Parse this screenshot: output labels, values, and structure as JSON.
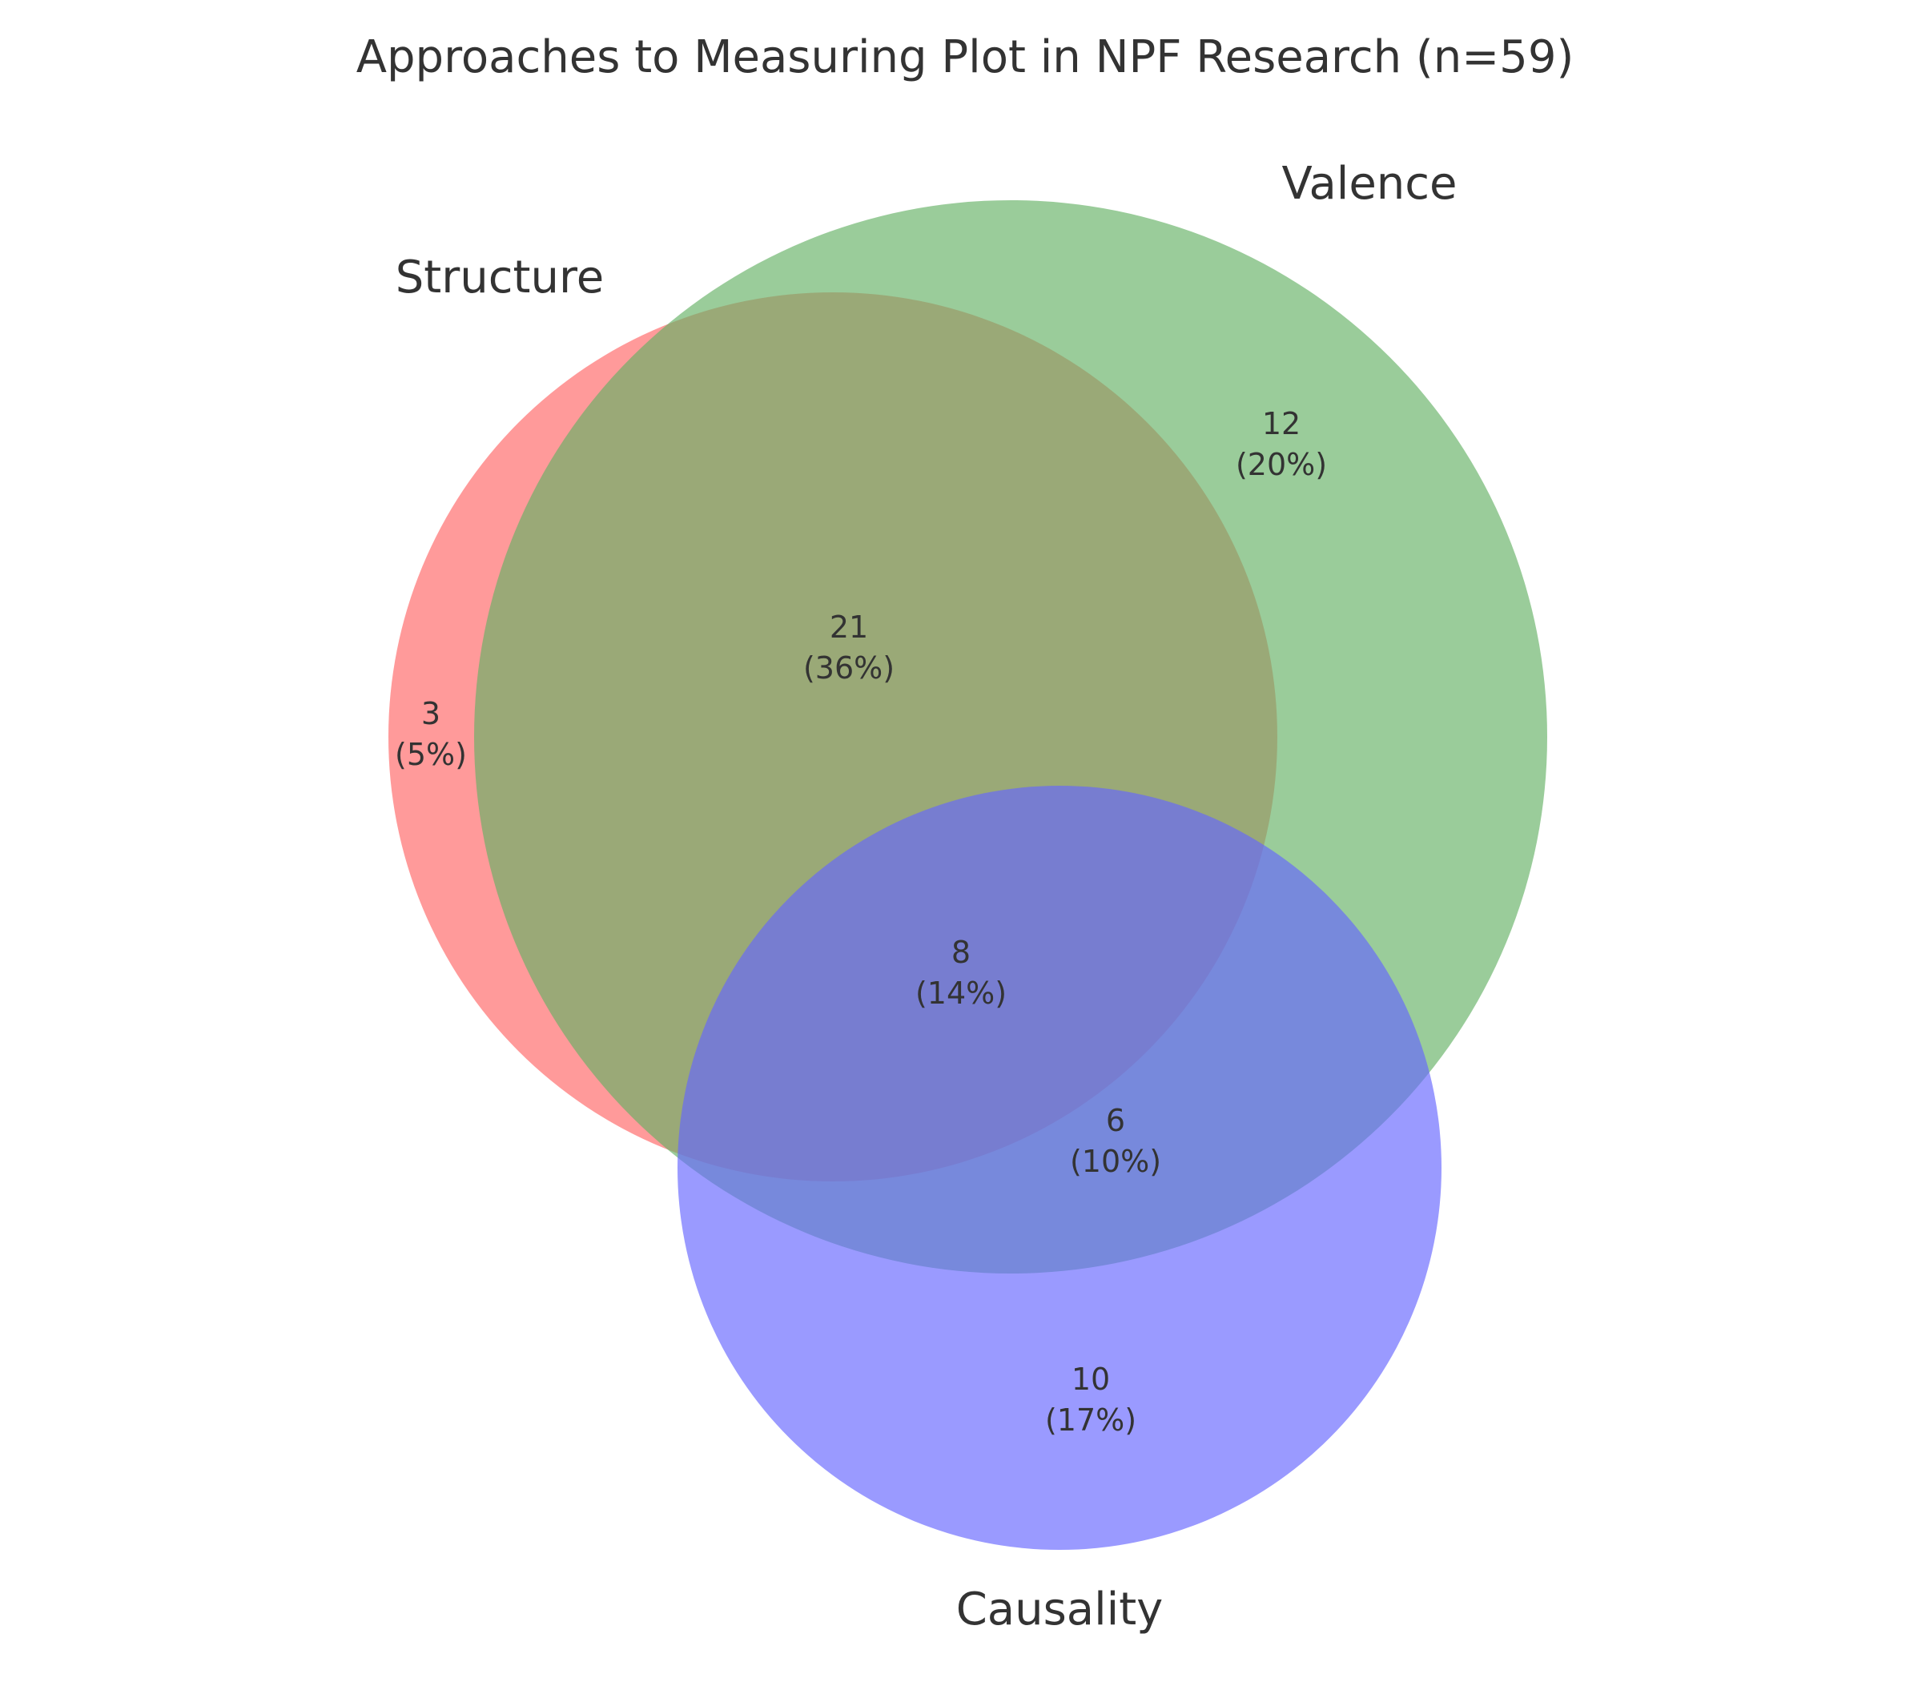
{
  "chart_data": {
    "type": "venn",
    "title": "Approaches to Measuring Plot in NPF Research (n=59)",
    "total": 59,
    "sets": [
      {
        "id": "structure",
        "name": "Structure",
        "color": "#ff6666"
      },
      {
        "id": "valence",
        "name": "Valence",
        "color": "#66b266"
      },
      {
        "id": "causality",
        "name": "Causality",
        "color": "#6666ff"
      }
    ],
    "regions": [
      {
        "id": "structure-only",
        "sets": [
          "Structure"
        ],
        "count": "3",
        "percent": "(5%)"
      },
      {
        "id": "valence-only",
        "sets": [
          "Valence"
        ],
        "count": "12",
        "percent": "(20%)"
      },
      {
        "id": "causality-only",
        "sets": [
          "Causality"
        ],
        "count": "10",
        "percent": "(17%)"
      },
      {
        "id": "structure-valence",
        "sets": [
          "Structure",
          "Valence"
        ],
        "count": "21",
        "percent": "(36%)"
      },
      {
        "id": "valence-causality",
        "sets": [
          "Valence",
          "Causality"
        ],
        "count": "6",
        "percent": "(10%)"
      },
      {
        "id": "structure-valence-causality",
        "sets": [
          "Structure",
          "Valence",
          "Causality"
        ],
        "count": "8",
        "percent": "(14%)"
      }
    ]
  }
}
